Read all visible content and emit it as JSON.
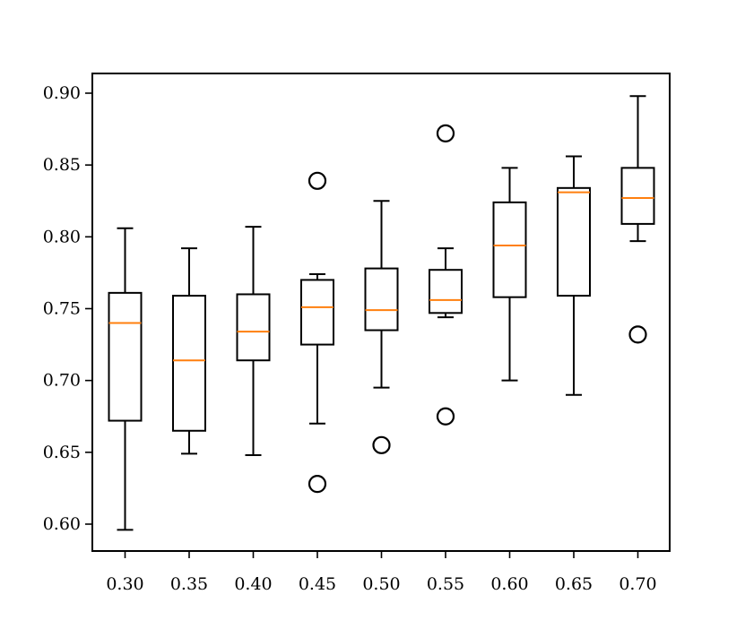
{
  "chart_data": {
    "type": "boxplot",
    "title": "",
    "xlabel": "",
    "ylabel": "",
    "categories": [
      "0.30",
      "0.35",
      "0.40",
      "0.45",
      "0.50",
      "0.55",
      "0.60",
      "0.65",
      "0.70"
    ],
    "ylim": [
      0.58,
      0.912
    ],
    "yticks": [
      0.6,
      0.65,
      0.7,
      0.75,
      0.8,
      0.85,
      0.9
    ],
    "ytick_labels": [
      "0.60",
      "0.65",
      "0.70",
      "0.75",
      "0.80",
      "0.85",
      "0.90"
    ],
    "grid": false,
    "colors": {
      "box": "#000000",
      "median": "#ff7f0e"
    },
    "boxes": [
      {
        "whisker_low": 0.596,
        "q1": 0.672,
        "median": 0.74,
        "q3": 0.761,
        "whisker_high": 0.806,
        "outliers": []
      },
      {
        "whisker_low": 0.649,
        "q1": 0.665,
        "median": 0.714,
        "q3": 0.759,
        "whisker_high": 0.792,
        "outliers": []
      },
      {
        "whisker_low": 0.648,
        "q1": 0.714,
        "median": 0.734,
        "q3": 0.76,
        "whisker_high": 0.807,
        "outliers": []
      },
      {
        "whisker_low": 0.67,
        "q1": 0.725,
        "median": 0.751,
        "q3": 0.77,
        "whisker_high": 0.774,
        "outliers": [
          0.839,
          0.628
        ]
      },
      {
        "whisker_low": 0.695,
        "q1": 0.735,
        "median": 0.749,
        "q3": 0.778,
        "whisker_high": 0.825,
        "outliers": [
          0.655
        ]
      },
      {
        "whisker_low": 0.744,
        "q1": 0.747,
        "median": 0.756,
        "q3": 0.777,
        "whisker_high": 0.792,
        "outliers": [
          0.872,
          0.675
        ]
      },
      {
        "whisker_low": 0.7,
        "q1": 0.758,
        "median": 0.794,
        "q3": 0.824,
        "whisker_high": 0.848,
        "outliers": []
      },
      {
        "whisker_low": 0.69,
        "q1": 0.759,
        "median": 0.831,
        "q3": 0.834,
        "whisker_high": 0.856,
        "outliers": []
      },
      {
        "whisker_low": 0.797,
        "q1": 0.809,
        "median": 0.827,
        "q3": 0.848,
        "whisker_high": 0.898,
        "outliers": [
          0.732
        ]
      }
    ]
  }
}
